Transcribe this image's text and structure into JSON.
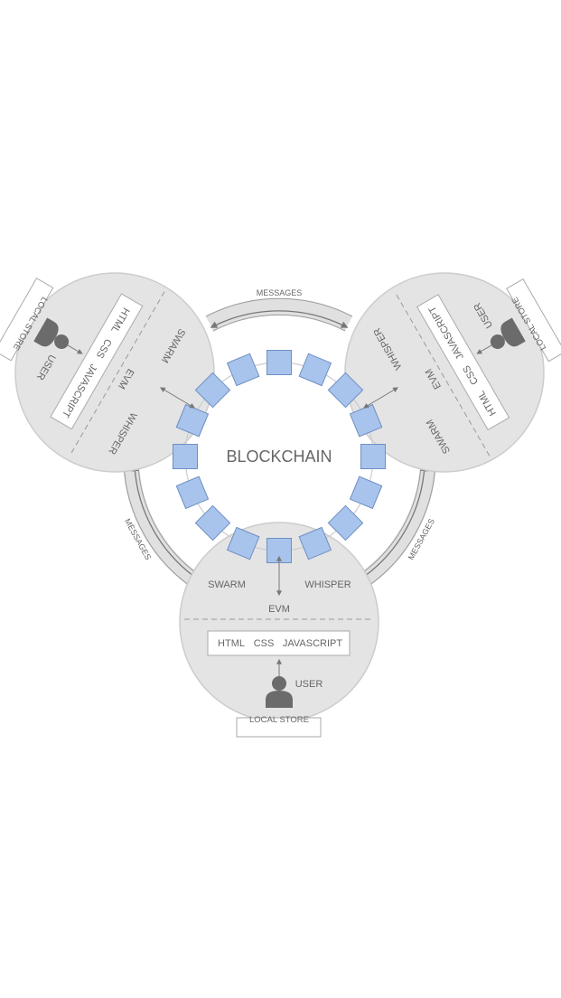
{
  "title": "BLOCKCHAIN",
  "labels": {
    "messages": "MESSAGES",
    "swarm": "SWARM",
    "whisper": "WHISPER",
    "evm": "EVM",
    "html": "HTML",
    "css": "CSS",
    "javascript": "JAVASCRIPT",
    "user": "USER",
    "local_store": "LOCAL STORE"
  },
  "colors": {
    "node_fill": "#e4e4e4",
    "node_stroke": "#cccccc",
    "block_fill": "#a8c4ec",
    "block_stroke": "#6f8fc4",
    "text": "#666666",
    "user_icon": "#6b6b6b"
  },
  "nodes": [
    "bottom",
    "top-left",
    "top-right"
  ],
  "block_count": 16
}
